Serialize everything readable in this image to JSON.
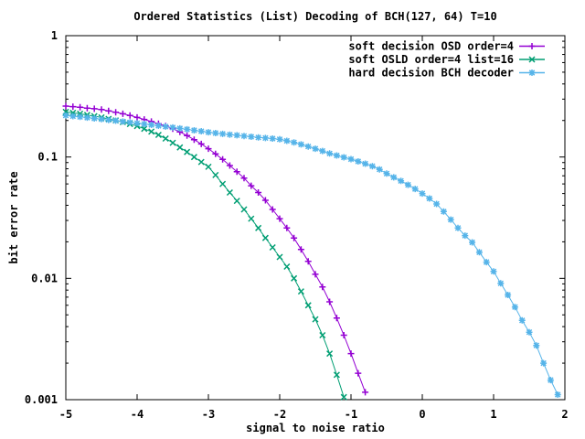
{
  "chart_data": {
    "type": "line",
    "title": "Ordered Statistics (List) Decoding of BCH(127, 64) T=10",
    "xlabel": "signal to noise ratio",
    "ylabel": "bit error rate",
    "x_range": [
      -5,
      2
    ],
    "y_range": [
      0.001,
      1
    ],
    "y_scale": "log",
    "grid": false,
    "legend_position": "top-right-inside",
    "x_ticks": [
      {
        "v": -5,
        "label": "-5"
      },
      {
        "v": -4,
        "label": "-4"
      },
      {
        "v": -3,
        "label": "-3"
      },
      {
        "v": -2,
        "label": "-2"
      },
      {
        "v": -1,
        "label": "-1"
      },
      {
        "v": 0,
        "label": "0"
      },
      {
        "v": 1,
        "label": "1"
      },
      {
        "v": 2,
        "label": "2"
      }
    ],
    "y_ticks": [
      {
        "v": 1,
        "label": "1"
      },
      {
        "v": 0.1,
        "label": "0.1"
      },
      {
        "v": 0.01,
        "label": "0.01"
      },
      {
        "v": 0.001,
        "label": "0.001"
      }
    ],
    "y_minor_decades": [
      0.001,
      0.01,
      0.1
    ],
    "colors": {
      "series1": "#9400d3",
      "series2": "#009e73",
      "series3": "#56b4e9",
      "axis": "#000000",
      "background": "#ffffff"
    },
    "series": [
      {
        "name": "soft decision OSD order=4",
        "color": "#9400d3",
        "marker": "plus",
        "points": [
          [
            -5.0,
            0.263
          ],
          [
            -4.9,
            0.26
          ],
          [
            -4.8,
            0.257
          ],
          [
            -4.7,
            0.253
          ],
          [
            -4.6,
            0.25
          ],
          [
            -4.5,
            0.246
          ],
          [
            -4.4,
            0.24
          ],
          [
            -4.3,
            0.234
          ],
          [
            -4.2,
            0.227
          ],
          [
            -4.1,
            0.22
          ],
          [
            -4.0,
            0.212
          ],
          [
            -3.9,
            0.204
          ],
          [
            -3.8,
            0.196
          ],
          [
            -3.7,
            0.188
          ],
          [
            -3.6,
            0.18
          ],
          [
            -3.5,
            0.171
          ],
          [
            -3.4,
            0.161
          ],
          [
            -3.3,
            0.15
          ],
          [
            -3.2,
            0.139
          ],
          [
            -3.1,
            0.128
          ],
          [
            -3.0,
            0.117
          ],
          [
            -2.9,
            0.106
          ],
          [
            -2.8,
            0.0955
          ],
          [
            -2.7,
            0.085
          ],
          [
            -2.6,
            0.0756
          ],
          [
            -2.5,
            0.067
          ],
          [
            -2.4,
            0.058
          ],
          [
            -2.3,
            0.051
          ],
          [
            -2.2,
            0.044
          ],
          [
            -2.1,
            0.037
          ],
          [
            -2.0,
            0.031
          ],
          [
            -1.9,
            0.026
          ],
          [
            -1.8,
            0.0215
          ],
          [
            -1.7,
            0.0173
          ],
          [
            -1.6,
            0.0138
          ],
          [
            -1.5,
            0.0108
          ],
          [
            -1.4,
            0.0085
          ],
          [
            -1.3,
            0.0064
          ],
          [
            -1.2,
            0.0047
          ],
          [
            -1.1,
            0.0034
          ],
          [
            -1.0,
            0.0024
          ],
          [
            -0.9,
            0.00165
          ],
          [
            -0.8,
            0.00115
          ]
        ]
      },
      {
        "name": "soft OSLD order=4 list=16",
        "color": "#009e73",
        "marker": "cross",
        "points": [
          [
            -5.0,
            0.235
          ],
          [
            -4.9,
            0.231
          ],
          [
            -4.8,
            0.227
          ],
          [
            -4.7,
            0.222
          ],
          [
            -4.6,
            0.217
          ],
          [
            -4.5,
            0.212
          ],
          [
            -4.4,
            0.206
          ],
          [
            -4.3,
            0.2
          ],
          [
            -4.2,
            0.194
          ],
          [
            -4.1,
            0.187
          ],
          [
            -4.0,
            0.18
          ],
          [
            -3.9,
            0.171
          ],
          [
            -3.8,
            0.162
          ],
          [
            -3.7,
            0.152
          ],
          [
            -3.6,
            0.142
          ],
          [
            -3.5,
            0.131
          ],
          [
            -3.4,
            0.12
          ],
          [
            -3.3,
            0.11
          ],
          [
            -3.2,
            0.1
          ],
          [
            -3.1,
            0.091
          ],
          [
            -3.0,
            0.083
          ],
          [
            -2.9,
            0.071
          ],
          [
            -2.8,
            0.06
          ],
          [
            -2.7,
            0.051
          ],
          [
            -2.6,
            0.0435
          ],
          [
            -2.5,
            0.037
          ],
          [
            -2.4,
            0.031
          ],
          [
            -2.3,
            0.026
          ],
          [
            -2.2,
            0.0215
          ],
          [
            -2.1,
            0.018
          ],
          [
            -2.0,
            0.015
          ],
          [
            -1.9,
            0.0125
          ],
          [
            -1.8,
            0.01
          ],
          [
            -1.7,
            0.0078
          ],
          [
            -1.6,
            0.006
          ],
          [
            -1.5,
            0.0046
          ],
          [
            -1.4,
            0.0034
          ],
          [
            -1.3,
            0.0024
          ],
          [
            -1.2,
            0.0016
          ],
          [
            -1.1,
            0.00105
          ]
        ]
      },
      {
        "name": "hard decision BCH decoder",
        "color": "#56b4e9",
        "marker": "asterisk",
        "points": [
          [
            -5.0,
            0.22
          ],
          [
            -4.9,
            0.217
          ],
          [
            -4.8,
            0.214
          ],
          [
            -4.7,
            0.211
          ],
          [
            -4.6,
            0.208
          ],
          [
            -4.5,
            0.205
          ],
          [
            -4.4,
            0.202
          ],
          [
            -4.3,
            0.199
          ],
          [
            -4.2,
            0.196
          ],
          [
            -4.1,
            0.193
          ],
          [
            -4.0,
            0.19
          ],
          [
            -3.9,
            0.187
          ],
          [
            -3.8,
            0.184
          ],
          [
            -3.7,
            0.181
          ],
          [
            -3.6,
            0.178
          ],
          [
            -3.5,
            0.175
          ],
          [
            -3.4,
            0.172
          ],
          [
            -3.3,
            0.169
          ],
          [
            -3.2,
            0.166
          ],
          [
            -3.1,
            0.163
          ],
          [
            -3.0,
            0.16
          ],
          [
            -2.9,
            0.1575
          ],
          [
            -2.8,
            0.155
          ],
          [
            -2.7,
            0.153
          ],
          [
            -2.6,
            0.151
          ],
          [
            -2.5,
            0.149
          ],
          [
            -2.4,
            0.147
          ],
          [
            -2.3,
            0.145
          ],
          [
            -2.2,
            0.1435
          ],
          [
            -2.1,
            0.142
          ],
          [
            -2.0,
            0.14
          ],
          [
            -1.9,
            0.136
          ],
          [
            -1.8,
            0.132
          ],
          [
            -1.7,
            0.127
          ],
          [
            -1.6,
            0.122
          ],
          [
            -1.5,
            0.117
          ],
          [
            -1.4,
            0.112
          ],
          [
            -1.3,
            0.107
          ],
          [
            -1.2,
            0.103
          ],
          [
            -1.1,
            0.0995
          ],
          [
            -1.0,
            0.096
          ],
          [
            -0.9,
            0.092
          ],
          [
            -0.8,
            0.088
          ],
          [
            -0.7,
            0.084
          ],
          [
            -0.6,
            0.079
          ],
          [
            -0.5,
            0.073
          ],
          [
            -0.4,
            0.068
          ],
          [
            -0.3,
            0.0635
          ],
          [
            -0.2,
            0.059
          ],
          [
            -0.1,
            0.0545
          ],
          [
            0.0,
            0.05
          ],
          [
            0.1,
            0.0455
          ],
          [
            0.2,
            0.041
          ],
          [
            0.3,
            0.0355
          ],
          [
            0.4,
            0.0305
          ],
          [
            0.5,
            0.026
          ],
          [
            0.6,
            0.0225
          ],
          [
            0.7,
            0.0198
          ],
          [
            0.8,
            0.0164
          ],
          [
            0.9,
            0.0136
          ],
          [
            1.0,
            0.0114
          ],
          [
            1.1,
            0.0091
          ],
          [
            1.2,
            0.0073
          ],
          [
            1.3,
            0.0058
          ],
          [
            1.4,
            0.0045
          ],
          [
            1.5,
            0.0036
          ],
          [
            1.6,
            0.0028
          ],
          [
            1.7,
            0.002
          ],
          [
            1.8,
            0.00145
          ],
          [
            1.9,
            0.0011
          ]
        ]
      }
    ]
  }
}
